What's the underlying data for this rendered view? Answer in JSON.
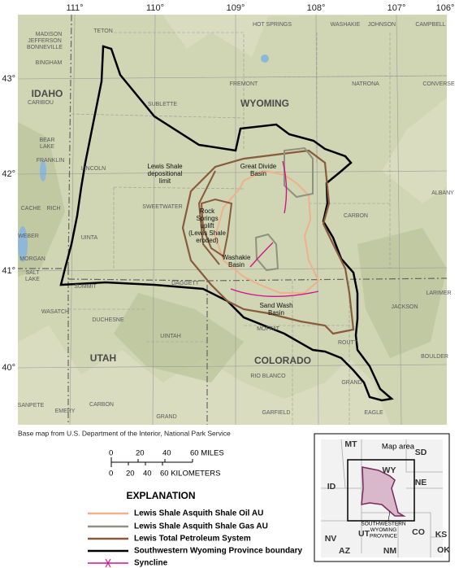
{
  "map": {
    "lon_labels": [
      "111°",
      "110°",
      "109°",
      "108°",
      "107°",
      "106°"
    ],
    "lat_labels": [
      "43°",
      "42°",
      "41°",
      "40°"
    ],
    "state_labels": [
      "IDAHO",
      "WYOMING",
      "UTAH",
      "COLORADO"
    ],
    "place_labels": [
      "TETON",
      "MADISON",
      "JEFFERSON",
      "BONNEVILLE",
      "BINGHAM",
      "HOT SPRINGS",
      "WASHAKIE",
      "JOHNSON",
      "CAMPBELL",
      "FREMONT",
      "NATRONA",
      "CONVERSE",
      "SUBLETTE",
      "CARIBOU",
      "BEAR",
      "LAKE",
      "FRANKLIN",
      "LINCOLN",
      "CACHE",
      "RICH",
      "WEBER",
      "MORGAN",
      "UINTA",
      "SWEETWATER",
      "CARBON",
      "ALBANY",
      "DAGGETT",
      "SALT",
      "LAKE",
      "SUMMIT",
      "WASATCH",
      "DUCHESNE",
      "UINTAH",
      "MOFFAT",
      "ROUTT",
      "JACKSON",
      "LARIMER",
      "RIO BLANCO",
      "GRAND",
      "BOULDER",
      "SANPETE",
      "EMERY",
      "CARBON",
      "GRAND",
      "GARFIELD",
      "EAGLE"
    ],
    "annotations": [
      [
        "Lewis Shale",
        "depositional",
        "limit"
      ],
      [
        "Great Divide",
        "Basin"
      ],
      [
        "Rock",
        "Springs",
        "uplift",
        "(Lewis Shale",
        "eroded)"
      ],
      [
        "Washakie",
        "Basin"
      ],
      [
        "Sand Wash",
        "Basin"
      ]
    ]
  },
  "credit": "Base map from U.S. Department of the Interior, National Park Service",
  "scale": {
    "miles": [
      "0",
      "20",
      "40",
      "60 MILES"
    ],
    "kilometers": [
      "0",
      "20",
      "40",
      "60 KILOMETERS"
    ]
  },
  "explanation": {
    "title": "EXPLANATION",
    "items": [
      "Lewis Shale Asquith Shale Oil AU",
      "Lewis Shale Asquith Shale Gas AU",
      "Lewis Total Petroleum System",
      "Southwestern Wyoming Province boundary",
      "Syncline"
    ]
  },
  "inset": {
    "labels": [
      "MT",
      "SD",
      "Map area",
      "ID",
      "WY",
      "NE",
      "NV",
      "UT",
      "CO",
      "KS",
      "AZ",
      "NM",
      "OK"
    ],
    "province": [
      "SOUTHWESTERN",
      "WYOMING",
      "PROVINCE"
    ]
  }
}
